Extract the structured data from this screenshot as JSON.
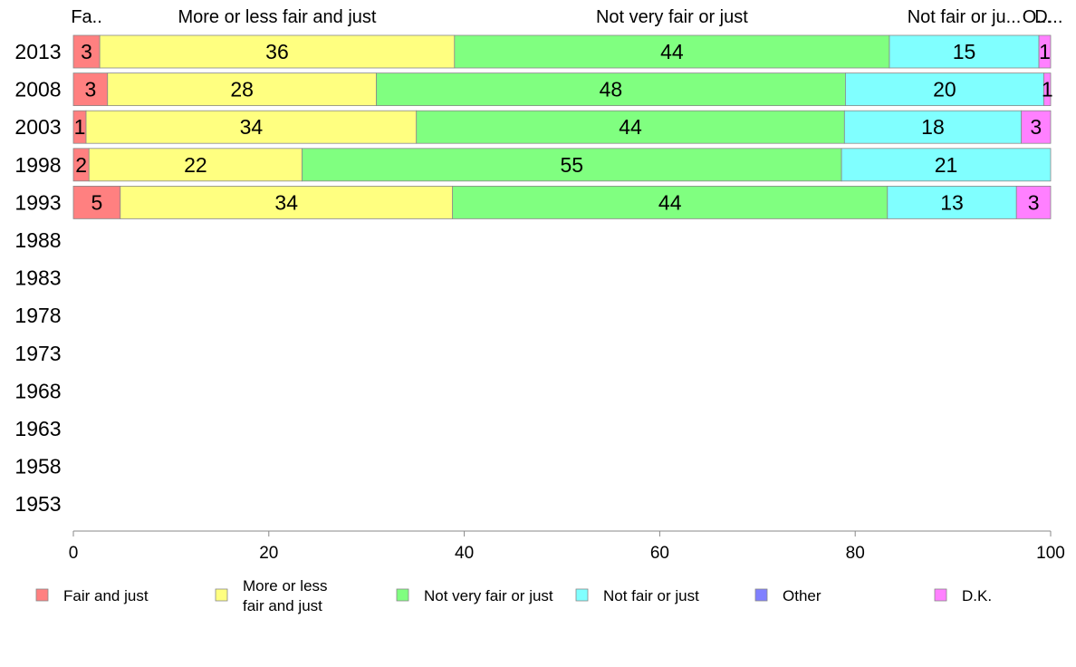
{
  "chart_data": {
    "type": "bar",
    "orientation": "horizontal",
    "stacked": true,
    "title": "",
    "xlabel": "",
    "ylabel": "",
    "xlim": [
      0,
      100
    ],
    "x_ticks": [
      "0",
      "20",
      "40",
      "60",
      "80",
      "100"
    ],
    "categories": [
      "2013",
      "2008",
      "2003",
      "1998",
      "1993",
      "1988",
      "1983",
      "1978",
      "1973",
      "1968",
      "1963",
      "1958",
      "1953"
    ],
    "top_labels": [
      "Fa..",
      "More or less fair and just",
      "Not very fair or just",
      "Not fair or ju...",
      "O...",
      "D..."
    ],
    "series": [
      {
        "name": "Fair and just",
        "legend_lines": [
          "Fair and just"
        ],
        "color": "#ff8080",
        "values": [
          2.7,
          3.5,
          1.3,
          1.6,
          4.8,
          null,
          null,
          null,
          null,
          null,
          null,
          null,
          null
        ],
        "labels": [
          "3",
          "3",
          "1",
          "2",
          "5",
          "",
          "",
          "",
          "",
          "",
          "",
          "",
          ""
        ]
      },
      {
        "name": "More or less fair and just",
        "legend_lines": [
          "More or less",
          "fair and just"
        ],
        "color": "#ffff80",
        "values": [
          36.3,
          27.5,
          33.8,
          21.8,
          34.0,
          null,
          null,
          null,
          null,
          null,
          null,
          null,
          null
        ],
        "labels": [
          "36",
          "28",
          "34",
          "22",
          "34",
          "",
          "",
          "",
          "",
          "",
          "",
          "",
          ""
        ]
      },
      {
        "name": "Not very fair or just",
        "legend_lines": [
          "Not very fair or just"
        ],
        "color": "#80ff80",
        "values": [
          44.5,
          48.0,
          43.8,
          55.2,
          44.5,
          null,
          null,
          null,
          null,
          null,
          null,
          null,
          null
        ],
        "labels": [
          "44",
          "48",
          "44",
          "55",
          "44",
          "",
          "",
          "",
          "",
          "",
          "",
          "",
          ""
        ]
      },
      {
        "name": "Not fair or just",
        "legend_lines": [
          "Not fair or just"
        ],
        "color": "#80ffff",
        "values": [
          15.3,
          20.3,
          18.1,
          21.4,
          13.2,
          null,
          null,
          null,
          null,
          null,
          null,
          null,
          null
        ],
        "labels": [
          "15",
          "20",
          "18",
          "21",
          "13",
          "",
          "",
          "",
          "",
          "",
          "",
          "",
          ""
        ]
      },
      {
        "name": "Other",
        "legend_lines": [
          "Other"
        ],
        "color": "#8080ff",
        "values": [
          0,
          0,
          0,
          0,
          0,
          null,
          null,
          null,
          null,
          null,
          null,
          null,
          null
        ],
        "labels": [
          "",
          "",
          "",
          "",
          "",
          "",
          "",
          "",
          "",
          "",
          "",
          "",
          ""
        ]
      },
      {
        "name": "D.K.",
        "legend_lines": [
          "D.K."
        ],
        "color": "#ff80ff",
        "values": [
          1.2,
          0.7,
          3.0,
          0.0,
          3.5,
          null,
          null,
          null,
          null,
          null,
          null,
          null,
          null
        ],
        "labels": [
          "1",
          "1",
          "3",
          "",
          "3",
          "",
          "",
          "",
          "",
          "",
          "",
          "",
          ""
        ]
      }
    ],
    "grid": false,
    "legend_position": "bottom"
  }
}
